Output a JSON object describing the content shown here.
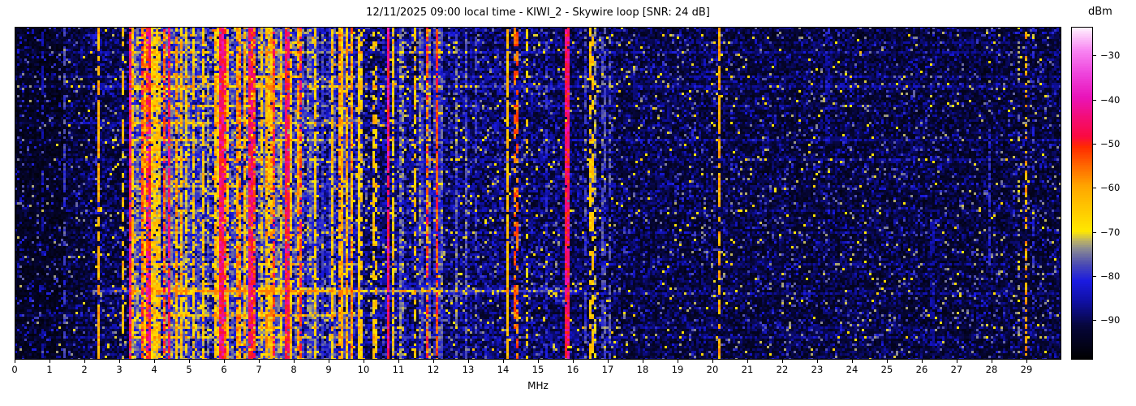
{
  "chart_data": {
    "type": "heatmap",
    "title": "12/11/2025 09:00 local time - KIWI_2 - Skywire loop [SNR: 24 dB]",
    "xlabel": "MHz",
    "x_range": [
      0,
      30
    ],
    "x_ticks": [
      0,
      1,
      2,
      3,
      4,
      5,
      6,
      7,
      8,
      9,
      10,
      11,
      12,
      13,
      14,
      15,
      16,
      17,
      18,
      19,
      20,
      21,
      22,
      23,
      24,
      25,
      26,
      27,
      28,
      29
    ],
    "grid": false,
    "colorbar": {
      "label": "dBm",
      "position": "right",
      "tick_values": [
        -30,
        -40,
        -50,
        -60,
        -70,
        -80,
        -90
      ],
      "vmax": -23.5,
      "vmin": -99
    },
    "palette_stops": [
      [
        0.0,
        "#000000"
      ],
      [
        0.1,
        "#06063a"
      ],
      [
        0.17,
        "#0f0f9e"
      ],
      [
        0.235,
        "#1a1ae0"
      ],
      [
        0.285,
        "#4a4ab4"
      ],
      [
        0.335,
        "#8e8e90"
      ],
      [
        0.36,
        "#c2b75e"
      ],
      [
        0.385,
        "#ffe800"
      ],
      [
        0.46,
        "#ffc400"
      ],
      [
        0.52,
        "#ffa600"
      ],
      [
        0.58,
        "#ff6a00"
      ],
      [
        0.64,
        "#ff2a00"
      ],
      [
        0.67,
        "#fa0a40"
      ],
      [
        0.73,
        "#f30d78"
      ],
      [
        0.79,
        "#e914ba"
      ],
      [
        0.86,
        "#ee44dc"
      ],
      [
        0.93,
        "#f885f2"
      ],
      [
        1.0,
        "#fff4fe"
      ]
    ],
    "noise_floor": [
      {
        "f0": 0,
        "f1": 1.45,
        "b": 0.055
      },
      {
        "f0": 1.45,
        "f1": 2.1,
        "b": 0.085
      },
      {
        "f0": 2.1,
        "f1": 3.3,
        "b": 0.105
      },
      {
        "f0": 3.3,
        "f1": 8.32,
        "b": 0.21
      },
      {
        "f0": 8.32,
        "f1": 10.0,
        "b": 0.18
      },
      {
        "f0": 10.0,
        "f1": 10.6,
        "b": 0.14
      },
      {
        "f0": 10.6,
        "f1": 12.3,
        "b": 0.15
      },
      {
        "f0": 12.3,
        "f1": 14.0,
        "b": 0.13
      },
      {
        "f0": 14.0,
        "f1": 15.6,
        "b": 0.125
      },
      {
        "f0": 15.6,
        "f1": 17.2,
        "b": 0.115
      },
      {
        "f0": 17.2,
        "f1": 20.5,
        "b": 0.1
      },
      {
        "f0": 20.5,
        "f1": 26.0,
        "b": 0.095
      },
      {
        "f0": 26.0,
        "f1": 30.0,
        "b": 0.09
      }
    ],
    "signal_clusters": [
      {
        "f0": 3.32,
        "f1": 4.1,
        "hot": 0.65,
        "gap": 0.18
      },
      {
        "f0": 4.1,
        "f1": 5.15,
        "hot": 0.55,
        "gap": 0.22
      },
      {
        "f0": 5.15,
        "f1": 5.67,
        "hot": 0.18,
        "gap": 0.3
      },
      {
        "f0": 5.67,
        "f1": 6.35,
        "hot": 0.8,
        "gap": 0.15
      },
      {
        "f0": 6.35,
        "f1": 6.95,
        "hot": 0.45,
        "gap": 0.25
      },
      {
        "f0": 6.95,
        "f1": 7.65,
        "hot": 0.75,
        "gap": 0.17
      },
      {
        "f0": 7.65,
        "f1": 8.32,
        "hot": 0.55,
        "gap": 0.22
      },
      {
        "f0": 8.32,
        "f1": 9.3,
        "hot": 0.2,
        "gap": 0.3
      },
      {
        "f0": 9.3,
        "f1": 10.0,
        "hot": 0.4,
        "gap": 0.28
      },
      {
        "f0": 10.78,
        "f1": 11.15,
        "hot": 0.45,
        "gap": 0.45
      },
      {
        "f0": 11.55,
        "f1": 12.25,
        "hot": 0.35,
        "gap": 0.4
      },
      {
        "f0": 12.6,
        "f1": 12.95,
        "hot": 0.3,
        "gap": 0.45
      }
    ],
    "signal_lines": [
      {
        "f": 0.79,
        "w": 0.07,
        "level": 0.17,
        "style": "dashed",
        "duty": 0.4
      },
      {
        "f": 1.44,
        "w": 0.07,
        "level": 0.26,
        "style": "dashed",
        "duty": 0.55
      },
      {
        "f": 2.4,
        "w": 0.09,
        "level": 0.47,
        "style": "dashed",
        "duty": 0.85
      },
      {
        "f": 3.1,
        "w": 0.07,
        "level": 0.45,
        "style": "dashed",
        "duty": 0.5
      },
      {
        "f": 3.31,
        "w": 0.08,
        "level": 0.69,
        "style": "solid",
        "duty": 1
      },
      {
        "f": 3.86,
        "w": 0.07,
        "level": 0.67,
        "style": "solid",
        "duty": 0.9
      },
      {
        "f": 4.44,
        "w": 0.07,
        "level": 0.67,
        "style": "solid",
        "duty": 0.9
      },
      {
        "f": 5.94,
        "w": 0.08,
        "level": 0.69,
        "style": "solid",
        "duty": 1
      },
      {
        "f": 6.77,
        "w": 0.07,
        "level": 0.67,
        "style": "solid",
        "duty": 0.95
      },
      {
        "f": 7.81,
        "w": 0.07,
        "level": 0.66,
        "style": "solid",
        "duty": 0.9
      },
      {
        "f": 9.4,
        "w": 0.07,
        "level": 0.44,
        "style": "dashed",
        "duty": 0.6
      },
      {
        "f": 9.65,
        "w": 0.07,
        "level": 0.42,
        "style": "dashed",
        "duty": 0.45
      },
      {
        "f": 9.9,
        "w": 0.07,
        "level": 0.43,
        "style": "dashed",
        "duty": 0.5
      },
      {
        "f": 10.33,
        "w": 0.07,
        "level": 0.44,
        "style": "dashed",
        "duty": 0.55
      },
      {
        "f": 10.72,
        "w": 0.08,
        "level": 0.7,
        "style": "solid",
        "duty": 1
      },
      {
        "f": 11.46,
        "w": 0.07,
        "level": 0.45,
        "style": "dashed",
        "duty": 0.6
      },
      {
        "f": 12.1,
        "w": 0.08,
        "level": 0.6,
        "style": "solid",
        "duty": 0.92
      },
      {
        "f": 13.2,
        "w": 0.07,
        "level": 0.26,
        "style": "dashed",
        "duty": 0.5
      },
      {
        "f": 14.14,
        "w": 0.08,
        "level": 0.45,
        "style": "solid",
        "duty": 0.97
      },
      {
        "f": 14.37,
        "w": 0.07,
        "level": 0.56,
        "style": "dashed",
        "duty": 0.55
      },
      {
        "f": 14.67,
        "w": 0.07,
        "level": 0.42,
        "style": "dotted",
        "duty": 0.35
      },
      {
        "f": 15.25,
        "w": 0.07,
        "level": 0.24,
        "style": "dashed",
        "duty": 0.5
      },
      {
        "f": 15.84,
        "w": 0.08,
        "level": 0.68,
        "style": "solid",
        "duty": 1
      },
      {
        "f": 16.36,
        "w": 0.07,
        "level": 0.26,
        "style": "dashed",
        "duty": 0.6
      },
      {
        "f": 16.54,
        "w": 0.07,
        "level": 0.44,
        "style": "dashed",
        "duty": 0.6
      },
      {
        "f": 16.66,
        "w": 0.07,
        "level": 0.33,
        "style": "dashed",
        "duty": 0.5
      },
      {
        "f": 16.89,
        "w": 0.07,
        "level": 0.27,
        "style": "dashed",
        "duty": 0.6
      },
      {
        "f": 17.05,
        "w": 0.07,
        "level": 0.28,
        "style": "dashed",
        "duty": 0.5
      },
      {
        "f": 20.19,
        "w": 0.08,
        "level": 0.48,
        "style": "dashed",
        "duty": 0.7
      },
      {
        "f": 23.3,
        "w": 0.07,
        "level": 0.17,
        "style": "partial",
        "duty": 0.6,
        "y0": 0.0,
        "y1": 0.35
      },
      {
        "f": 26.3,
        "w": 0.07,
        "level": 0.17,
        "style": "partial",
        "duty": 0.6,
        "y0": 0.55,
        "y1": 0.95
      },
      {
        "f": 27.93,
        "w": 0.07,
        "level": 0.24,
        "style": "partial",
        "duty": 0.7,
        "y0": 0.3,
        "y1": 0.72
      },
      {
        "f": 28.79,
        "w": 0.07,
        "level": 0.33,
        "style": "dotted",
        "duty": 0.3
      },
      {
        "f": 28.98,
        "w": 0.07,
        "level": 0.5,
        "style": "dotted",
        "duty": 0.5
      },
      {
        "f": 29.18,
        "w": 0.07,
        "level": 0.23,
        "style": "dotted",
        "duty": 0.4
      }
    ],
    "time_streaks": [
      {
        "y": 0.045,
        "s": 0.06,
        "f0": 0,
        "f1": 30
      },
      {
        "y": 0.075,
        "s": 0.1,
        "f0": 0,
        "f1": 30
      },
      {
        "y": 0.145,
        "s": 0.11,
        "f0": 0,
        "f1": 30
      },
      {
        "y": 0.175,
        "s": 0.13,
        "f0": 0,
        "f1": 30
      },
      {
        "y": 0.235,
        "s": 0.06,
        "f0": 0,
        "f1": 30
      },
      {
        "y": 0.285,
        "s": 0.12,
        "f0": 0,
        "f1": 11
      },
      {
        "y": 0.335,
        "s": 0.1,
        "f0": 0,
        "f1": 30
      },
      {
        "y": 0.4,
        "s": 0.08,
        "f0": 0,
        "f1": 30
      },
      {
        "y": 0.475,
        "s": 0.06,
        "f0": 3,
        "f1": 30
      },
      {
        "y": 0.555,
        "s": 0.07,
        "f0": 0,
        "f1": 30
      },
      {
        "y": 0.615,
        "s": 0.05,
        "f0": 0,
        "f1": 30
      },
      {
        "y": 0.715,
        "s": 0.06,
        "f0": 0,
        "f1": 30
      },
      {
        "y": 0.795,
        "s": 0.28,
        "f0": 2.2,
        "f1": 16.2
      },
      {
        "y": 0.8,
        "s": 0.1,
        "f0": 16.2,
        "f1": 30
      },
      {
        "y": 0.87,
        "s": 0.13,
        "f0": 0,
        "f1": 10.6
      },
      {
        "y": 0.905,
        "s": 0.07,
        "f0": 0,
        "f1": 30
      },
      {
        "y": 0.935,
        "s": 0.08,
        "f0": 0,
        "f1": 30
      }
    ]
  }
}
